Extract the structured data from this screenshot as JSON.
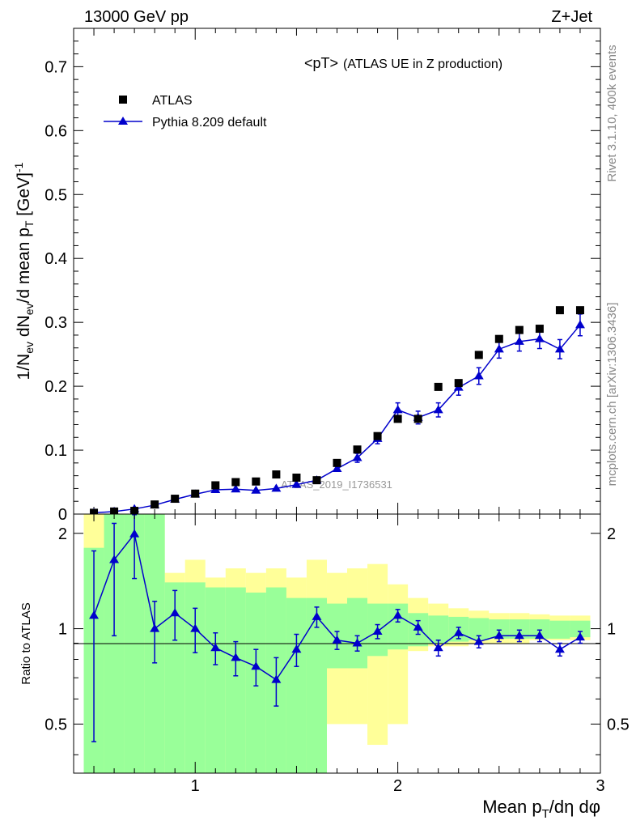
{
  "header": {
    "left": "13000 GeV pp",
    "right": "Z+Jet"
  },
  "side_labels": {
    "rivet": "Rivet 3.1.10,  400k events",
    "mcplots": "mcplots.cern.ch [arXiv:1306.3436]"
  },
  "watermark": "ATLAS_2019_I1736531",
  "colors": {
    "data": "#000000",
    "mc": "#0000cc",
    "band_inner": "#99ff99",
    "band_outer": "#ffff99"
  },
  "chart_data": [
    {
      "type": "scatter",
      "title": "<pT> (ATLAS UE in Z production)",
      "title_main": "<pT>",
      "title_sub": "(ATLAS UE in Z production)",
      "ylabel": "1/N_ev dN_ev/d mean p_T [GeV]^-1",
      "ylim": [
        0,
        0.76
      ],
      "y_ticks": [
        "0",
        "0.1",
        "0.2",
        "0.3",
        "0.4",
        "0.5",
        "0.6",
        "0.7"
      ],
      "xlim": [
        0.4,
        3.0
      ],
      "legend": {
        "placement": "top-left",
        "entries": [
          "ATLAS",
          "Pythia 8.209 default"
        ]
      },
      "x": [
        0.5,
        0.6,
        0.7,
        0.8,
        0.9,
        1.0,
        1.1,
        1.2,
        1.3,
        1.4,
        1.5,
        1.6,
        1.7,
        1.8,
        1.9,
        2.0,
        2.1,
        2.2,
        2.3,
        2.4,
        2.5,
        2.6,
        2.7,
        2.8,
        2.9
      ],
      "series": [
        {
          "name": "ATLAS",
          "values": [
            0.002,
            0.004,
            0.005,
            0.015,
            0.024,
            0.032,
            0.045,
            0.05,
            0.051,
            0.062,
            0.057,
            0.053,
            0.08,
            0.101,
            0.122,
            0.149,
            0.149,
            0.199,
            0.205,
            0.249,
            0.274,
            0.288,
            0.29,
            0.319,
            0.319
          ]
        },
        {
          "name": "Pythia 8.209 default",
          "values": [
            0.002,
            0.004,
            0.008,
            0.014,
            0.023,
            0.031,
            0.038,
            0.039,
            0.037,
            0.04,
            0.046,
            0.053,
            0.071,
            0.088,
            0.118,
            0.163,
            0.151,
            0.163,
            0.198,
            0.216,
            0.258,
            0.27,
            0.274,
            0.258,
            0.296
          ],
          "errors": [
            0.001,
            0.001,
            0.002,
            0.002,
            0.003,
            0.003,
            0.004,
            0.004,
            0.004,
            0.004,
            0.005,
            0.005,
            0.006,
            0.007,
            0.008,
            0.011,
            0.01,
            0.011,
            0.012,
            0.013,
            0.014,
            0.015,
            0.015,
            0.015,
            0.017
          ]
        }
      ]
    },
    {
      "type": "line",
      "ylabel": "Ratio to ATLAS",
      "ylim": [
        0.35,
        2.3
      ],
      "y_ticks": [
        "0.5",
        "1",
        "2"
      ],
      "x_ticks": [
        "1",
        "2",
        "3"
      ],
      "xlabel": "Mean p_T/dη dφ",
      "xlim": [
        0.4,
        3.0
      ],
      "reference": 1,
      "bins": [
        [
          0.45,
          0.55
        ],
        [
          0.55,
          0.65
        ],
        [
          0.65,
          0.75
        ],
        [
          0.75,
          0.85
        ],
        [
          0.85,
          0.95
        ],
        [
          0.95,
          1.05
        ],
        [
          1.05,
          1.15
        ],
        [
          1.15,
          1.25
        ],
        [
          1.25,
          1.35
        ],
        [
          1.35,
          1.45
        ],
        [
          1.45,
          1.55
        ],
        [
          1.55,
          1.65
        ],
        [
          1.65,
          1.75
        ],
        [
          1.75,
          1.85
        ],
        [
          1.85,
          1.95
        ],
        [
          1.95,
          2.05
        ],
        [
          2.05,
          2.15
        ],
        [
          2.15,
          2.25
        ],
        [
          2.25,
          2.35
        ],
        [
          2.35,
          2.45
        ],
        [
          2.45,
          2.55
        ],
        [
          2.55,
          2.65
        ],
        [
          2.65,
          2.75
        ],
        [
          2.75,
          2.85
        ],
        [
          2.85,
          2.95
        ]
      ],
      "band_inner": [
        [
          0.3,
          1.8
        ],
        [
          0.3,
          2.3
        ],
        [
          0.3,
          2.3
        ],
        [
          0.3,
          2.3
        ],
        [
          0.3,
          1.4
        ],
        [
          0.3,
          1.4
        ],
        [
          0.3,
          1.35
        ],
        [
          0.3,
          1.35
        ],
        [
          0.3,
          1.3
        ],
        [
          0.3,
          1.35
        ],
        [
          0.3,
          1.25
        ],
        [
          0.3,
          1.25
        ],
        [
          0.75,
          1.2
        ],
        [
          0.75,
          1.25
        ],
        [
          0.82,
          1.2
        ],
        [
          0.86,
          1.2
        ],
        [
          0.88,
          1.12
        ],
        [
          0.9,
          1.1
        ],
        [
          0.91,
          1.09
        ],
        [
          0.92,
          1.08
        ],
        [
          0.93,
          1.07
        ],
        [
          0.93,
          1.07
        ],
        [
          0.93,
          1.07
        ],
        [
          0.93,
          1.06
        ],
        [
          0.94,
          1.06
        ]
      ],
      "band_outer": [
        [
          0.3,
          2.3
        ],
        [
          0.3,
          2.3
        ],
        [
          0.3,
          2.3
        ],
        [
          0.3,
          2.3
        ],
        [
          0.3,
          1.5
        ],
        [
          0.3,
          1.65
        ],
        [
          0.3,
          1.45
        ],
        [
          0.3,
          1.55
        ],
        [
          0.3,
          1.5
        ],
        [
          0.3,
          1.55
        ],
        [
          0.3,
          1.45
        ],
        [
          0.3,
          1.65
        ],
        [
          0.5,
          1.5
        ],
        [
          0.5,
          1.55
        ],
        [
          0.43,
          1.6
        ],
        [
          0.5,
          1.38
        ],
        [
          0.85,
          1.25
        ],
        [
          0.88,
          1.2
        ],
        [
          0.88,
          1.16
        ],
        [
          0.9,
          1.14
        ],
        [
          0.9,
          1.12
        ],
        [
          0.9,
          1.12
        ],
        [
          0.92,
          1.11
        ],
        [
          0.92,
          1.1
        ],
        [
          0.92,
          1.1
        ]
      ],
      "series": [
        {
          "name": "Pythia 8.209 default",
          "values": [
            1.1,
            1.65,
            1.99,
            1.0,
            1.12,
            1.0,
            0.87,
            0.81,
            0.76,
            0.69,
            0.86,
            1.09,
            0.92,
            0.9,
            0.98,
            1.1,
            1.01,
            0.87,
            0.97,
            0.91,
            0.95,
            0.95,
            0.95,
            0.86,
            0.94
          ],
          "err_low": [
            0.66,
            0.7,
            0.55,
            0.22,
            0.2,
            0.16,
            0.1,
            0.1,
            0.1,
            0.12,
            0.1,
            0.08,
            0.06,
            0.05,
            0.05,
            0.05,
            0.05,
            0.05,
            0.04,
            0.04,
            0.04,
            0.04,
            0.04,
            0.04,
            0.04
          ],
          "err_high": [
            0.66,
            0.5,
            0.3,
            0.22,
            0.2,
            0.16,
            0.1,
            0.1,
            0.1,
            0.12,
            0.1,
            0.08,
            0.06,
            0.05,
            0.05,
            0.05,
            0.05,
            0.05,
            0.04,
            0.04,
            0.04,
            0.04,
            0.04,
            0.04,
            0.04
          ]
        }
      ]
    }
  ]
}
